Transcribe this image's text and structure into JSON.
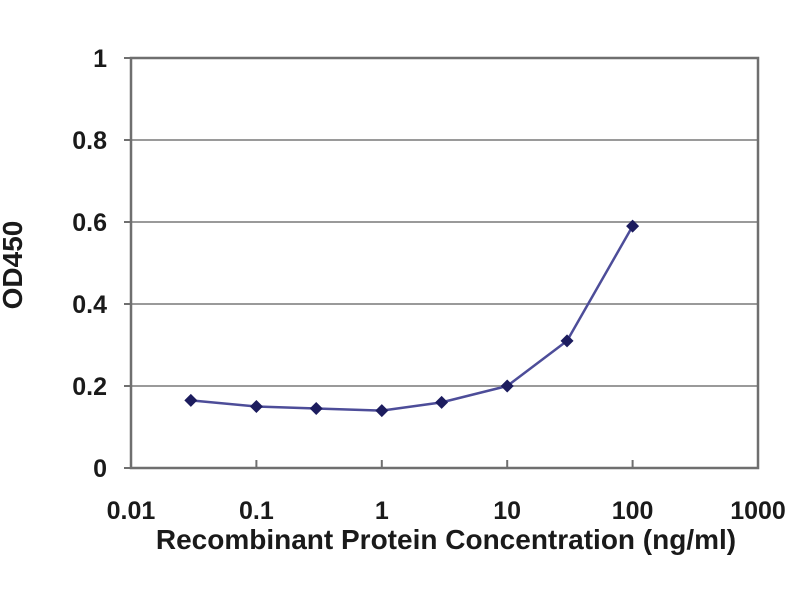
{
  "figure": {
    "background_color": "#ffffff"
  },
  "chart_data": {
    "type": "line",
    "title": "",
    "xlabel": "Recombinant Protein Concentration (ng/ml)",
    "ylabel": "OD450",
    "x_scale": "log",
    "y_scale": "linear",
    "xlim": [
      0.01,
      1000
    ],
    "ylim": [
      0,
      1
    ],
    "x_ticks": [
      0.01,
      0.1,
      1,
      10,
      100,
      1000
    ],
    "x_tick_labels": [
      "0.01",
      "0.1",
      "1",
      "10",
      "100",
      "1000"
    ],
    "y_ticks": [
      0,
      0.2,
      0.4,
      0.6,
      0.8,
      1
    ],
    "y_tick_labels": [
      "0",
      "0.2",
      "0.4",
      "0.6",
      "0.8",
      "1"
    ],
    "grid": "horizontal",
    "legend": "none",
    "series": [
      {
        "name": "OD450",
        "x": [
          0.03,
          0.1,
          0.3,
          1,
          3,
          10,
          30,
          100
        ],
        "y": [
          0.165,
          0.15,
          0.145,
          0.14,
          0.16,
          0.2,
          0.31,
          0.59
        ],
        "marker": "diamond",
        "line_color": "#4d4d99",
        "marker_color": "#1c1c5e"
      }
    ],
    "colors": {
      "grid_line": "#9a9a9a",
      "plot_border": "#6f6f6f",
      "tick_mark": "#6f6f6f",
      "label_text": "#1a1a1a",
      "background": "#ffffff"
    }
  }
}
